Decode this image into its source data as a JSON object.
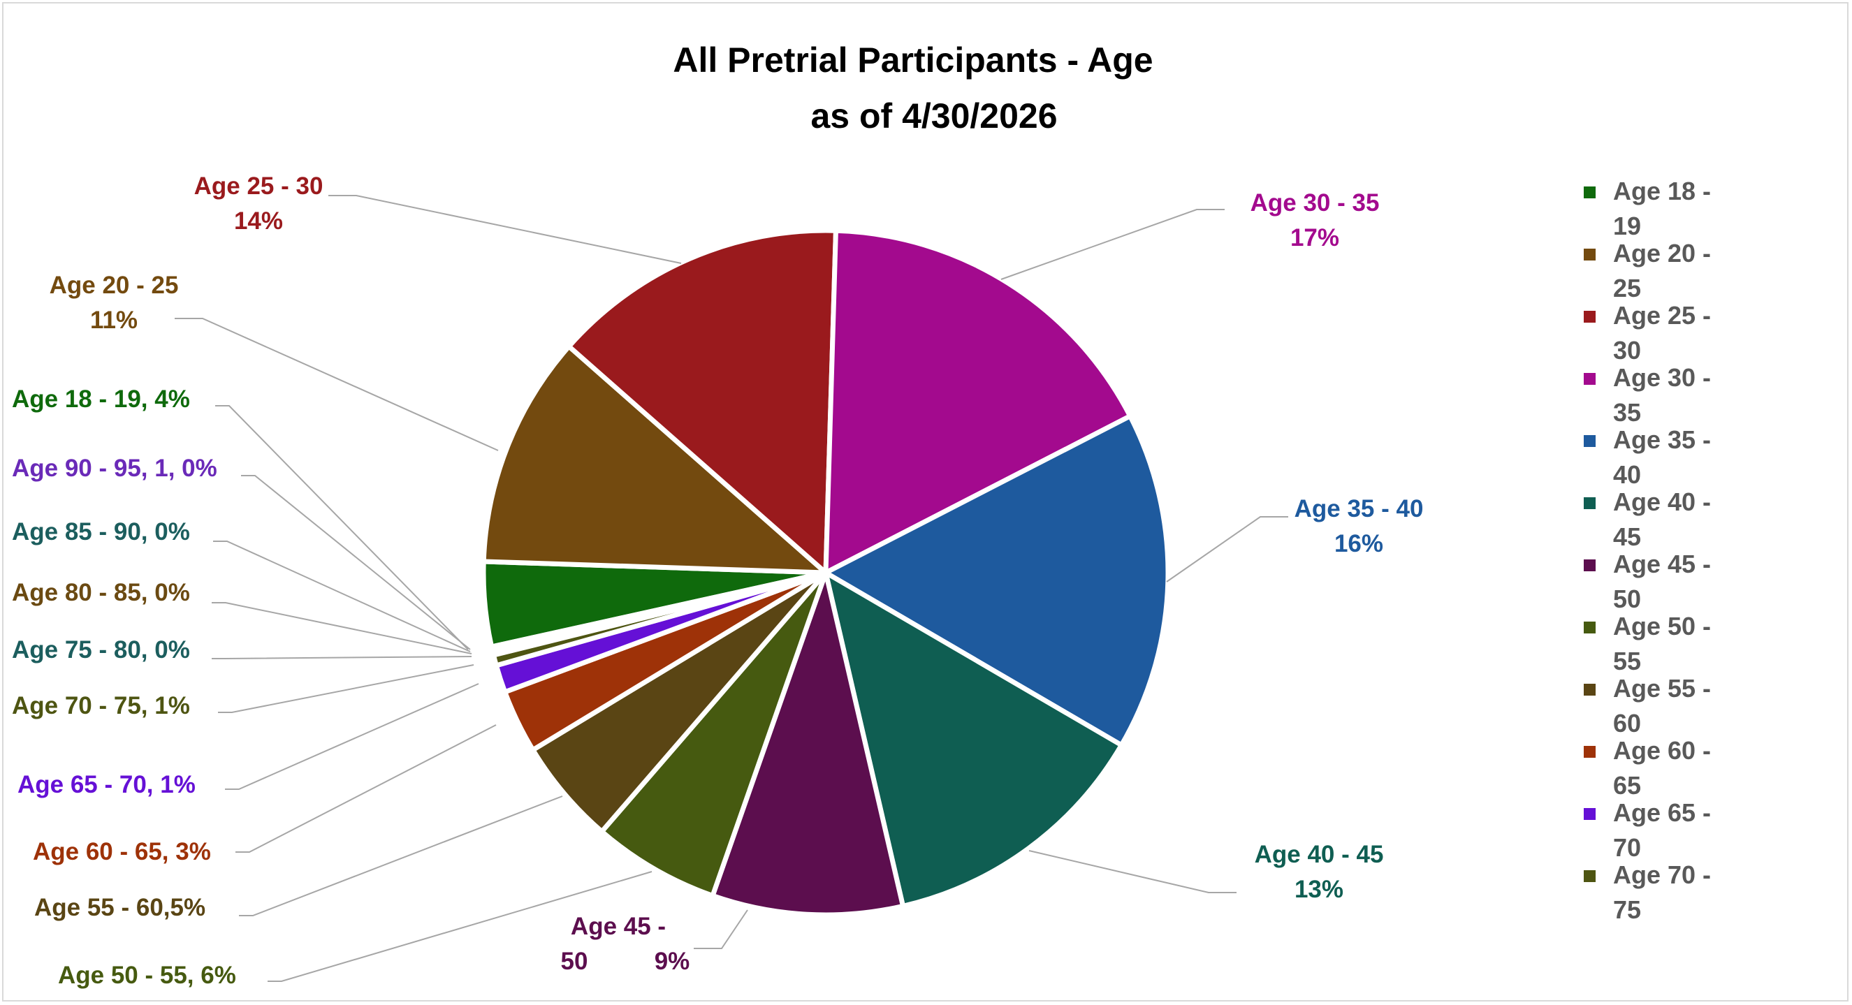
{
  "chart_data": {
    "type": "pie",
    "title": "All Pretrial Participants - Age",
    "subtitle": "as of 4/30/2026",
    "legend_position": "right",
    "slices": [
      {
        "key": "18-19",
        "legend": [
          "Age 18 -",
          "19"
        ],
        "label": [
          "Age 18 - 19, 4%"
        ],
        "value": 4,
        "color": "#0F6A0C"
      },
      {
        "key": "20-25",
        "legend": [
          "Age 20 -",
          "25"
        ],
        "label": [
          "Age 20 - 25",
          "11%"
        ],
        "value": 11,
        "color": "#734A0F"
      },
      {
        "key": "25-30",
        "legend": [
          "Age 25 -",
          "30"
        ],
        "label": [
          "Age 25 - 30",
          "14%"
        ],
        "value": 14,
        "color": "#9A1A1D"
      },
      {
        "key": "30-35",
        "legend": [
          "Age 30 -",
          "35"
        ],
        "label": [
          "Age 30 - 35",
          "17%"
        ],
        "value": 17,
        "color": "#A30A8E"
      },
      {
        "key": "35-40",
        "legend": [
          "Age 35 -",
          "40"
        ],
        "label": [
          "Age 35 - 40",
          "16%"
        ],
        "value": 16,
        "color": "#1E5A9E"
      },
      {
        "key": "40-45",
        "legend": [
          "Age 40 -",
          "45"
        ],
        "label": [
          "Age 40 - 45",
          "13%"
        ],
        "value": 13,
        "color": "#0F5E52"
      },
      {
        "key": "45-50",
        "legend": [
          "Age 45 -",
          "50"
        ],
        "label": [
          "Age 45 -",
          "50",
          "9%"
        ],
        "value": 9,
        "color": "#5C0E4E"
      },
      {
        "key": "50-55",
        "legend": [
          "Age 50 -",
          "55"
        ],
        "label": [
          "Age 50 - 55, 6%"
        ],
        "value": 6,
        "color": "#465A10"
      },
      {
        "key": "55-60",
        "legend": [
          "Age 55 -",
          "60"
        ],
        "label": [
          "Age 55 - 60,5%"
        ],
        "value": 5,
        "color": "#5A4514"
      },
      {
        "key": "60-65",
        "legend": [
          "Age 60 -",
          "65"
        ],
        "label": [
          "Age 60 - 65, 3%"
        ],
        "value": 3,
        "color": "#9E3208"
      },
      {
        "key": "65-70",
        "legend": [
          "Age 65 -",
          "70"
        ],
        "label": [
          "Age 65 - 70, 1%"
        ],
        "value": 1.3,
        "color": "#6510D6"
      },
      {
        "key": "70-75",
        "legend": [
          "Age 70 -",
          "75"
        ],
        "label": [
          "Age 70 - 75, 1%"
        ],
        "value": 0.5,
        "color": "#4E5512"
      },
      {
        "key": "75-80",
        "legend": [],
        "label": [
          "Age 75 - 80, 0%"
        ],
        "value": 0.1,
        "color": "#1C5E5E"
      },
      {
        "key": "80-85",
        "legend": [],
        "label": [
          "Age 80 - 85, 0%"
        ],
        "value": 0.1,
        "color": "#6B4A12"
      },
      {
        "key": "85-90",
        "legend": [],
        "label": [
          "Age 85 - 90, 0%"
        ],
        "value": 0.1,
        "color": "#1C5E5E"
      },
      {
        "key": "90-95",
        "legend": [],
        "label": [
          "Age 90 - 95, 1, 0%"
        ],
        "value": 0.1,
        "color": "#6A2AB8"
      }
    ]
  }
}
